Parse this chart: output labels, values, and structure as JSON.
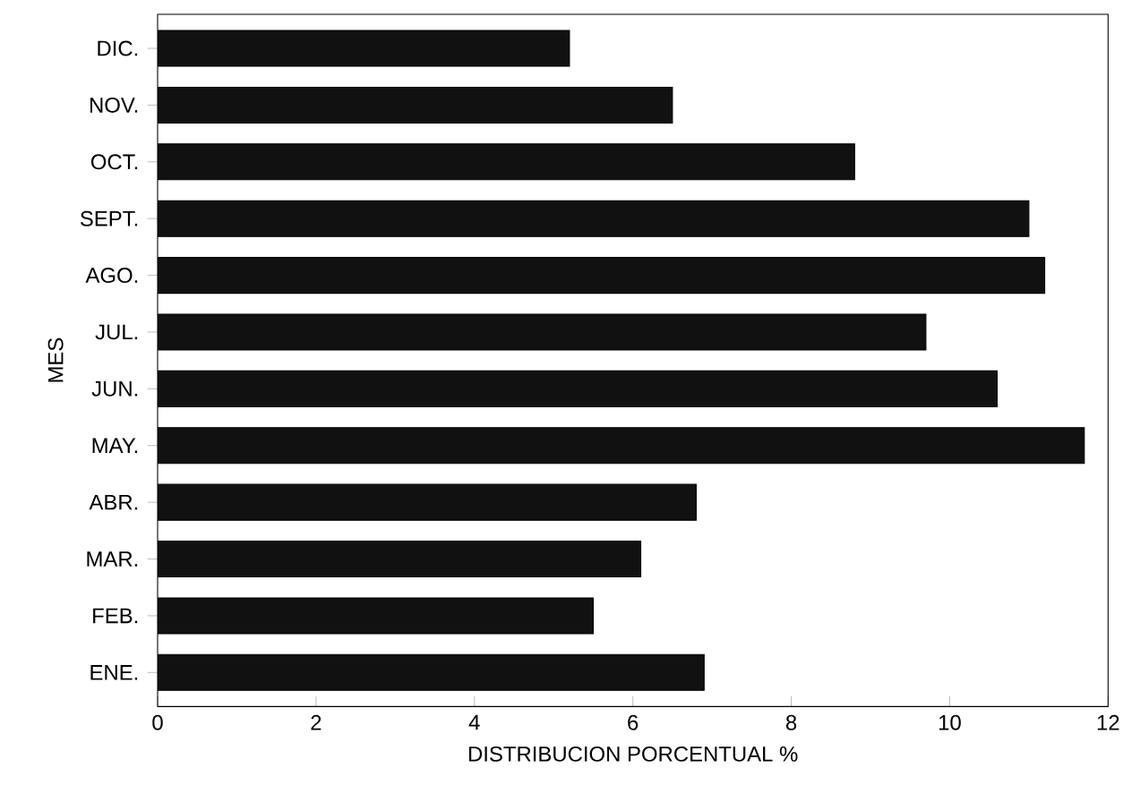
{
  "chart_data": {
    "type": "bar",
    "orientation": "horizontal",
    "xlabel": "DISTRIBUCION PORCENTUAL %",
    "ylabel": "MES",
    "categories": [
      "DIC.",
      "NOV.",
      "OCT.",
      "SEPT.",
      "AGO.",
      "JUL.",
      "JUN.",
      "MAY.",
      "ABR.",
      "MAR.",
      "FEB.",
      "ENE."
    ],
    "values": [
      5.2,
      6.5,
      8.8,
      11.0,
      11.2,
      9.7,
      10.6,
      11.7,
      6.8,
      6.1,
      5.5,
      6.9
    ],
    "color": "#111111",
    "xlim": [
      0,
      12
    ],
    "xticks": [
      0,
      2,
      4,
      6,
      8,
      10,
      12
    ]
  }
}
